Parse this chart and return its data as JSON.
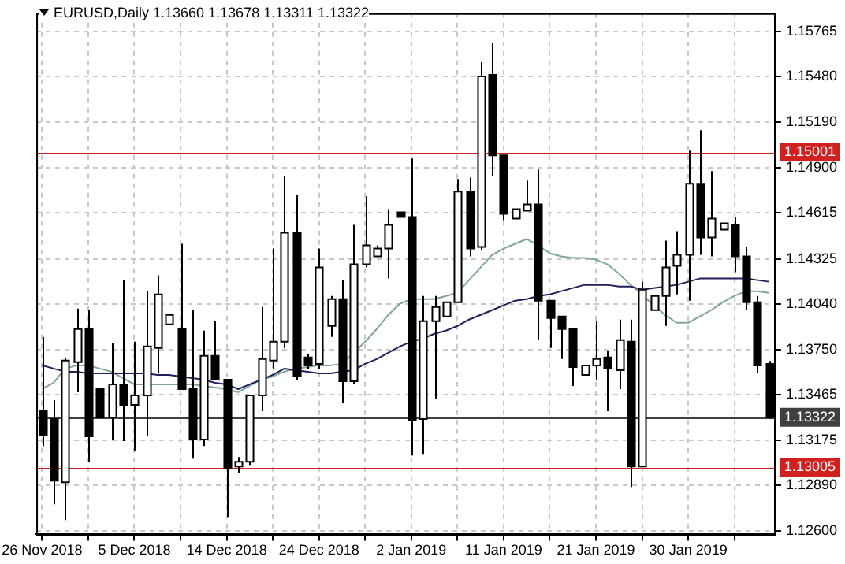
{
  "chart_data": {
    "type": "candlestick",
    "title": "EURUSD,Daily 1.13660 1.13678 1.13311 1.13322",
    "categories": [
      "26 Nov 2018",
      null,
      null,
      null,
      null,
      null,
      null,
      null,
      "5 Dec 2018",
      null,
      null,
      null,
      null,
      null,
      null,
      null,
      "14 Dec 2018",
      null,
      null,
      null,
      null,
      null,
      null,
      null,
      "24 Dec 2018",
      null,
      null,
      null,
      null,
      null,
      null,
      null,
      "2 Jan 2019",
      null,
      null,
      null,
      null,
      null,
      null,
      null,
      "11 Jan 2019",
      null,
      null,
      null,
      null,
      null,
      null,
      null,
      "21 Jan 2019",
      null,
      null,
      null,
      null,
      null,
      null,
      null,
      "30 Jan 2019",
      null,
      null,
      null,
      null,
      null,
      null,
      null
    ],
    "ohlc": [
      [
        1.1336,
        1.1383,
        1.1314,
        1.1321
      ],
      [
        1.1331,
        1.1343,
        1.1277,
        1.1292
      ],
      [
        1.1291,
        1.137,
        1.1267,
        1.1368
      ],
      [
        1.1367,
        1.1401,
        1.1348,
        1.1388
      ],
      [
        1.1388,
        1.14,
        1.1304,
        1.132
      ],
      [
        1.135,
        1.135,
        1.1332,
        1.1332
      ],
      [
        1.1332,
        1.1379,
        1.1318,
        1.1353
      ],
      [
        1.1353,
        1.1419,
        1.1317,
        1.134
      ],
      [
        1.134,
        1.138,
        1.1311,
        1.1346
      ],
      [
        1.1346,
        1.1412,
        1.132,
        1.1377
      ],
      [
        1.1376,
        1.1422,
        1.136,
        1.141
      ],
      [
        1.1391,
        1.1397,
        1.1391,
        1.1397
      ],
      [
        1.1388,
        1.1442,
        1.135,
        1.135
      ],
      [
        1.135,
        1.14,
        1.1306,
        1.1318
      ],
      [
        1.1318,
        1.1387,
        1.1314,
        1.1371
      ],
      [
        1.1371,
        1.1393,
        1.1356,
        1.1356
      ],
      [
        1.1356,
        1.1356,
        1.1269,
        1.13
      ],
      [
        1.1301,
        1.1307,
        1.1297,
        1.1304
      ],
      [
        1.1304,
        1.1346,
        1.1302,
        1.1346
      ],
      [
        1.1346,
        1.1402,
        1.1336,
        1.1369
      ],
      [
        1.1368,
        1.1439,
        1.1363,
        1.138
      ],
      [
        1.138,
        1.1485,
        1.1376,
        1.1449
      ],
      [
        1.1449,
        1.1473,
        1.1356,
        1.1358
      ],
      [
        1.137,
        1.1372,
        1.1363,
        1.1365
      ],
      [
        1.1366,
        1.1439,
        1.1363,
        1.1427
      ],
      [
        1.139,
        1.1409,
        1.1383,
        1.1407
      ],
      [
        1.1407,
        1.1419,
        1.1341,
        1.1355
      ],
      [
        1.1355,
        1.1454,
        1.1353,
        1.1429
      ],
      [
        1.1429,
        1.1472,
        1.1427,
        1.1441
      ],
      [
        1.1434,
        1.1441,
        1.1434,
        1.1439
      ],
      [
        1.1439,
        1.1464,
        1.142,
        1.1454
      ],
      [
        1.1462,
        1.1462,
        1.1459,
        1.1459
      ],
      [
        1.1459,
        1.1496,
        1.1308,
        1.133
      ],
      [
        1.1331,
        1.1409,
        1.1309,
        1.1393
      ],
      [
        1.1393,
        1.1409,
        1.1344,
        1.1402
      ],
      [
        1.1396,
        1.1405,
        1.1396,
        1.1405
      ],
      [
        1.1405,
        1.1483,
        1.1405,
        1.1475
      ],
      [
        1.1475,
        1.1484,
        1.1434,
        1.1439
      ],
      [
        1.144,
        1.1557,
        1.1438,
        1.1548
      ],
      [
        1.1549,
        1.1569,
        1.1485,
        1.1498
      ],
      [
        1.1498,
        1.1498,
        1.1457,
        1.1461
      ],
      [
        1.1458,
        1.1464,
        1.1458,
        1.1464
      ],
      [
        1.1463,
        1.1482,
        1.1463,
        1.1467
      ],
      [
        1.1467,
        1.1489,
        1.1381,
        1.1406
      ],
      [
        1.1406,
        1.1406,
        1.1376,
        1.1395
      ],
      [
        1.1396,
        1.1396,
        1.1369,
        1.1388
      ],
      [
        1.1388,
        1.1388,
        1.1352,
        1.1364
      ],
      [
        1.1359,
        1.1365,
        1.1359,
        1.1365
      ],
      [
        1.1365,
        1.1393,
        1.1356,
        1.1369
      ],
      [
        1.137,
        1.1374,
        1.1336,
        1.1363
      ],
      [
        1.1362,
        1.1394,
        1.135,
        1.1381
      ],
      [
        1.138,
        1.1394,
        1.1288,
        1.1301
      ],
      [
        1.1301,
        1.1418,
        1.1301,
        1.1413
      ],
      [
        1.14,
        1.1409,
        1.14,
        1.1409
      ],
      [
        1.1409,
        1.1444,
        1.139,
        1.1427
      ],
      [
        1.1428,
        1.145,
        1.141,
        1.1435
      ],
      [
        1.1435,
        1.1501,
        1.1406,
        1.148
      ],
      [
        1.148,
        1.1514,
        1.1435,
        1.1446
      ],
      [
        1.1446,
        1.1488,
        1.1434,
        1.1458
      ],
      [
        1.1451,
        1.1455,
        1.1451,
        1.1455
      ],
      [
        1.1454,
        1.1459,
        1.1424,
        1.1434
      ],
      [
        1.1434,
        1.144,
        1.14,
        1.1405
      ],
      [
        1.1405,
        1.1409,
        1.136,
        1.1365
      ],
      [
        1.1366,
        1.13678,
        1.13311,
        1.13322
      ]
    ],
    "series": [
      {
        "type": "line",
        "color": "#1f1f5c",
        "values": [
          1.1365,
          1.1363,
          1.1361,
          1.1361,
          1.136,
          1.136,
          1.136,
          1.136,
          1.136,
          1.136,
          1.1359,
          1.1359,
          1.1358,
          1.1357,
          1.1356,
          1.1354,
          1.1353,
          1.135,
          1.1353,
          1.1356,
          1.1359,
          1.1363,
          1.1362,
          1.1361,
          1.136,
          1.136,
          1.1361,
          1.1362,
          1.1366,
          1.1369,
          1.1373,
          1.1377,
          1.138,
          1.1382,
          1.1385,
          1.1387,
          1.139,
          1.1394,
          1.1397,
          1.14,
          1.1403,
          1.1406,
          1.1407,
          1.1409,
          1.141,
          1.1412,
          1.1414,
          1.1416,
          1.1416,
          1.1416,
          1.1415,
          1.1415,
          1.1413,
          1.1414,
          1.1415,
          1.1416,
          1.1418,
          1.142,
          1.142,
          1.142,
          1.142,
          1.142,
          1.1419,
          1.1418
        ]
      },
      {
        "type": "line",
        "color": "#7fa894",
        "values": [
          1.135,
          1.1354,
          1.1363,
          1.1365,
          1.1365,
          1.1363,
          1.1361,
          1.1357,
          1.1353,
          1.1353,
          1.1353,
          1.1353,
          1.1353,
          1.1353,
          1.1352,
          1.1351,
          1.135,
          1.1348,
          1.1352,
          1.1356,
          1.1358,
          1.1361,
          1.1363,
          1.1364,
          1.1365,
          1.1365,
          1.1366,
          1.1373,
          1.138,
          1.1388,
          1.1397,
          1.1404,
          1.1407,
          1.1407,
          1.1407,
          1.1409,
          1.1411,
          1.1419,
          1.1427,
          1.1435,
          1.1439,
          1.1442,
          1.1445,
          1.1441,
          1.1436,
          1.1434,
          1.1433,
          1.1433,
          1.1432,
          1.1429,
          1.1423,
          1.1416,
          1.141,
          1.1403,
          1.1397,
          1.1392,
          1.1392,
          1.1396,
          1.14,
          1.1405,
          1.1409,
          1.1412,
          1.1412,
          1.1411
        ]
      }
    ],
    "ylim": [
      1.1258,
      1.1588
    ],
    "yticks": [
      1.15765,
      {
        "value": 1.1548,
        "label": "1.15480"
      },
      {
        "value": 1.1519,
        "label": "1.15190"
      },
      {
        "value": 1.149,
        "label": "1.14900"
      },
      1.14615,
      1.14325,
      {
        "value": 1.1404,
        "label": "1.14040"
      },
      {
        "value": 1.1375,
        "label": "1.13750"
      },
      1.13465,
      1.13175,
      {
        "value": 1.1289,
        "label": "1.12890"
      },
      {
        "value": 1.126,
        "label": "1.12600"
      }
    ],
    "ref_lines": [
      {
        "axis": "y",
        "value": 1.15001,
        "label": "1.15001",
        "color": "#d02020"
      },
      {
        "axis": "y",
        "value": 1.13005,
        "label": "1.13005",
        "color": "#d02020"
      },
      {
        "axis": "y",
        "value": 1.13322,
        "label": "1.13322",
        "color": "#404040"
      }
    ],
    "grid": true,
    "legend": false,
    "marker": "none",
    "line_style": "solid"
  }
}
